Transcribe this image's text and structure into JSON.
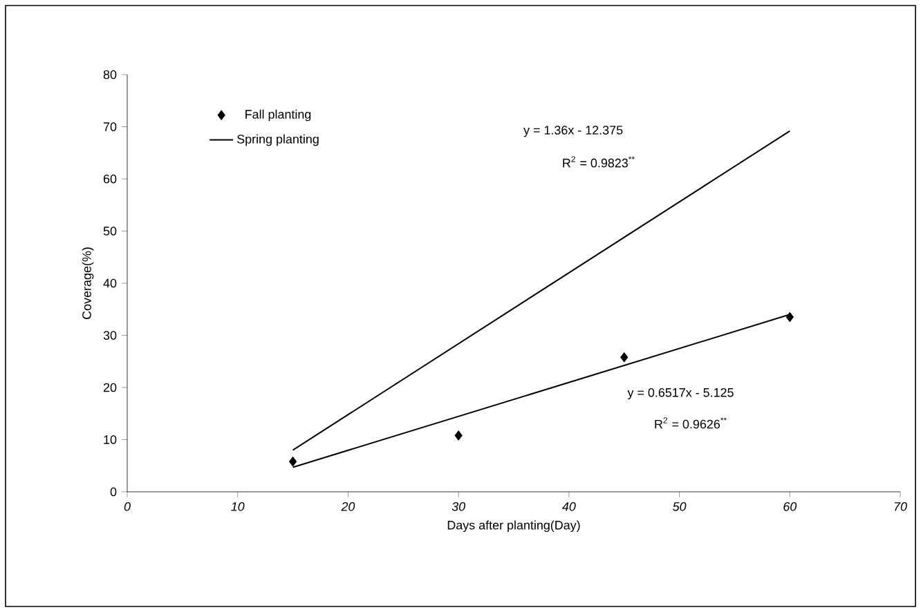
{
  "chart_data": {
    "type": "scatter",
    "xlabel": "Days after planting(Day)",
    "ylabel": "Coverage(%)",
    "xlim": [
      0,
      70
    ],
    "xticks": [
      0,
      10,
      20,
      30,
      40,
      50,
      60,
      70
    ],
    "ylim": [
      0,
      80
    ],
    "yticks": [
      0,
      10,
      20,
      30,
      40,
      50,
      60,
      70,
      80
    ],
    "grid": false,
    "legend": "top left",
    "series": [
      {
        "name": "Fall planting",
        "marker": "diamond",
        "color": "#000000",
        "x": [
          15,
          30,
          45,
          60
        ],
        "values": [
          5.8,
          10.8,
          25.8,
          33.5
        ]
      },
      {
        "name": "Spring planting",
        "type": "line",
        "marker": "none",
        "color": "#000000",
        "x": [
          15,
          60
        ],
        "values": [
          8.0,
          69.2
        ]
      },
      {
        "type": "line",
        "marker": "none",
        "color": "#000000",
        "x": [
          15,
          60
        ],
        "values": [
          4.7,
          34.0
        ]
      }
    ],
    "annotations": [
      "y = 1.36x - 12.375",
      "R$^{2}$ = 0.9823$^{**}$",
      "y = 0.6517x - 5.125",
      "R$^{2}$ = 0.9626$^{**}$"
    ]
  }
}
